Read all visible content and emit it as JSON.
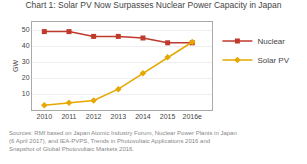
{
  "chart_data": {
    "type": "line",
    "title": "Chart 1: Solar PV Now Surpasses Nuclear Power Capacity in Japan",
    "ylabel": "GW",
    "x": [
      2010,
      2011,
      2012,
      2013,
      2014,
      2015,
      2016
    ],
    "xlim": [
      2009.5,
      2016.8
    ],
    "xticks": [
      2010,
      2011,
      2012,
      2013,
      2014,
      2015,
      {
        "value": 2016,
        "label": "2016e"
      }
    ],
    "ylim": [
      0,
      55
    ],
    "yticks": [
      10,
      20,
      30,
      40,
      50
    ],
    "grid": true,
    "legend": "right",
    "series": [
      {
        "name": "Nuclear",
        "color": "#c0392b",
        "marker": "square",
        "values": [
          49,
          49,
          46,
          46,
          45,
          42,
          42
        ]
      },
      {
        "name": "Solar PV",
        "color": "#e6a800",
        "marker": "diamond",
        "values": [
          3,
          4.5,
          6,
          13,
          23,
          33,
          42.5
        ]
      }
    ],
    "annotations": [
      "Sources: RMI based on Japan Atomic Industry Forum, Nuclear Power Plants in Japan (6 April 2017), and IEA-PVPS, Trends in Photovoltaic Applications 2016 and Snapshot of Global Photovoltaic Markets 2016."
    ]
  }
}
